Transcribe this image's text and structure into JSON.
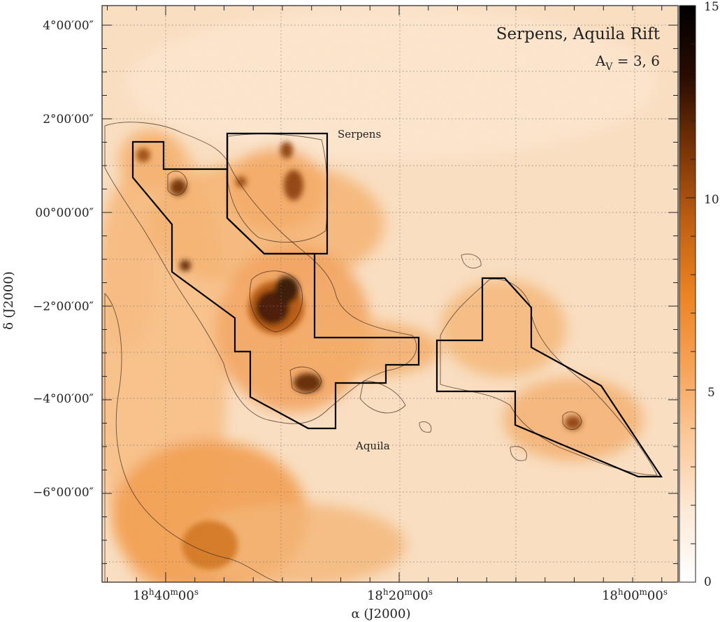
{
  "figure": {
    "title": "Serpens, Aquila Rift",
    "contour_label_main": "A",
    "contour_label_sub": "V",
    "contour_label_rest": " = 3, 6",
    "regions": [
      {
        "name": "Serpens"
      },
      {
        "name": "Aquila"
      }
    ],
    "x_axis": {
      "label": "α (J2000)",
      "ticks": [
        {
          "pre": "18",
          "h": "h",
          "m_val": "40",
          "m": "m",
          "s_val": "00",
          "s": "s"
        },
        {
          "pre": "18",
          "h": "h",
          "m_val": "20",
          "m": "m",
          "s_val": "00",
          "s": "s"
        },
        {
          "pre": "18",
          "h": "h",
          "m_val": "00",
          "m": "m",
          "s_val": "00",
          "s": "s"
        }
      ]
    },
    "y_axis": {
      "label": "δ (J2000)",
      "ticks": [
        "4°00′00″",
        "2°00′00″",
        "00°00′00″",
        "−2°00′00″",
        "−4°00′00″",
        "−6°00′00″"
      ]
    },
    "colorbar": {
      "ticks": [
        "15",
        "10",
        "5",
        "0"
      ],
      "range": [
        0,
        15
      ],
      "colors": [
        "#ffffff",
        "#fde9d6",
        "#fbc999",
        "#f7a257",
        "#ec8322",
        "#bf5f12",
        "#7a3406",
        "#2a0c00",
        "#000000"
      ]
    },
    "colors": {
      "background": "#fbe4cc",
      "cloud_mid": "#f5a862",
      "cloud_strong": "#e57a1e",
      "cloud_dark": "#4a1a02"
    }
  }
}
